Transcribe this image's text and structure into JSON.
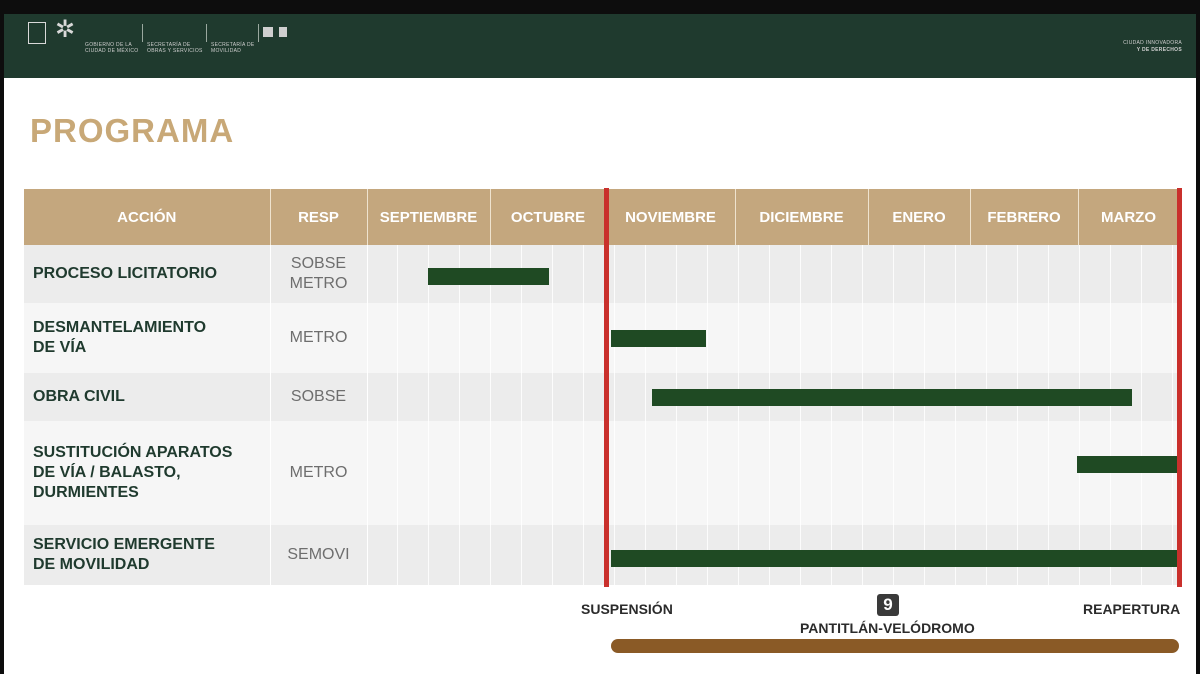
{
  "header": {
    "org_gob": "GOBIERNO DE LA CIUDAD DE MÉXICO",
    "org_obras": "SECRETARÍA DE OBRAS Y SERVICIOS",
    "org_movilidad": "SECRETARÍA DE MOVILIDAD",
    "slogan_line1": "CIUDAD INNOVADORA",
    "slogan_line2": "Y DE DERECHOS",
    "colors": {
      "header_bg": "#1f3a2e",
      "accent_gold": "#c8a877"
    }
  },
  "title": "PROGRAMA",
  "table": {
    "headers": {
      "action": "ACCIÓN",
      "resp": "RESP"
    },
    "months": [
      "SEPTIEMBRE",
      "OCTUBRE",
      "NOVIEMBRE",
      "DICIEMBRE",
      "ENERO",
      "FEBRERO",
      "MARZO"
    ],
    "rows": [
      {
        "action_line1": "PROCESO LICITATORIO",
        "action_line2": "",
        "action_line3": "",
        "resp_line1": "SOBSE",
        "resp_line2": "METRO"
      },
      {
        "action_line1": "DESMANTELAMIENTO",
        "action_line2": "DE VÍA",
        "action_line3": "",
        "resp_line1": "METRO",
        "resp_line2": ""
      },
      {
        "action_line1": "OBRA CIVIL",
        "action_line2": "",
        "action_line3": "",
        "resp_line1": "SOBSE",
        "resp_line2": ""
      },
      {
        "action_line1": "SUSTITUCIÓN APARATOS",
        "action_line2": "DE VÍA / BALASTO,",
        "action_line3": "DURMIENTES",
        "resp_line1": "METRO",
        "resp_line2": ""
      },
      {
        "action_line1": "SERVICIO EMERGENTE",
        "action_line2": "DE MOVILIDAD",
        "action_line3": "",
        "resp_line1": "SEMOVI",
        "resp_line2": ""
      }
    ],
    "bar_color": "#1f4a23"
  },
  "markers": {
    "suspension": "SUSPENSIÓN",
    "reapertura": "REAPERTURA",
    "line_number": "9",
    "route": "PANTITLÁN-VELÓDROMO",
    "marker_color": "#c9302c"
  }
}
